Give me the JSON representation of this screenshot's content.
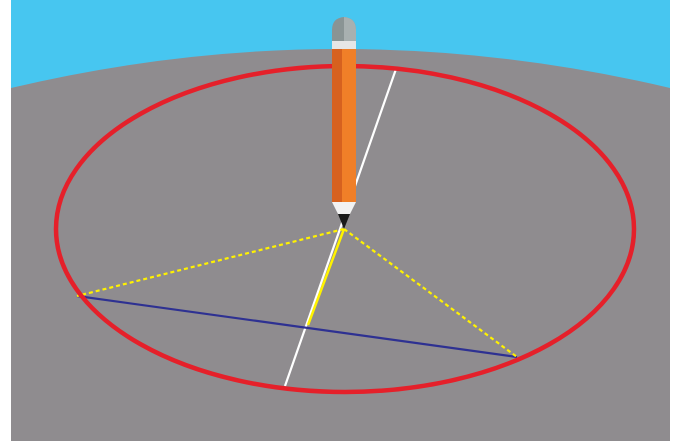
{
  "colors": {
    "background": "#ffffff",
    "sky": "#47c6f0",
    "ground": "#8f8c8f",
    "circle": "#e5202a",
    "chord": "#2e3192",
    "diameter": "#ffffff",
    "radius_dashed": "#fff200",
    "radius_solid": "#fff200",
    "pencil_body": "#f07f28",
    "pencil_body_shadow": "#d6611f",
    "pencil_band": "#e6e6e6",
    "pencil_eraser": "#8a9494",
    "pencil_eraser_shadow": "#a8b0b0",
    "pencil_wood": "#f2f2f2",
    "pencil_tip": "#1a1a1a"
  },
  "icons": {
    "pencil": "pencil-icon"
  }
}
